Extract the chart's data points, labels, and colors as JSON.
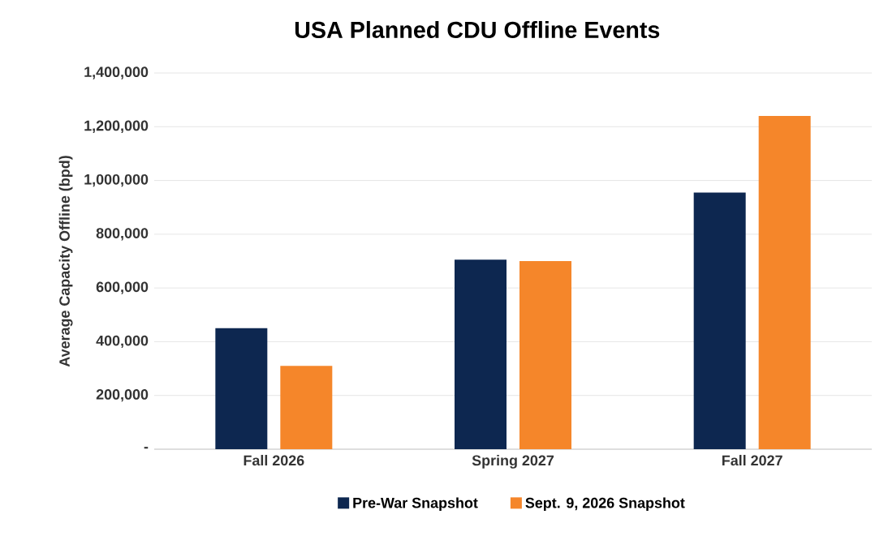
{
  "chart_data": {
    "type": "bar",
    "title": "USA Planned CDU Offline Events",
    "ylabel": "Average Capacity Offline (bpd)",
    "categories": [
      "Fall 2026",
      "Spring 2027",
      "Fall 2027"
    ],
    "series": [
      {
        "name": "Pre-War Snapshot",
        "color": "#0d2750",
        "values": [
          450000,
          705000,
          955000
        ]
      },
      {
        "name": "Sept. 9, 2026 Snapshot",
        "color": "#f5862a",
        "values": [
          310000,
          700000,
          1240000
        ]
      }
    ],
    "ylim": [
      0,
      1400000
    ],
    "yticks": [
      {
        "value": 0,
        "label": "-"
      },
      {
        "value": 200000,
        "label": "200,000"
      },
      {
        "value": 400000,
        "label": "400,000"
      },
      {
        "value": 600000,
        "label": "600,000"
      },
      {
        "value": 800000,
        "label": "800,000"
      },
      {
        "value": 1000000,
        "label": "1,000,000"
      },
      {
        "value": 1200000,
        "label": "1,200,000"
      },
      {
        "value": 1400000,
        "label": "1,400,000"
      }
    ],
    "grid": "y",
    "legend": "bottom"
  }
}
